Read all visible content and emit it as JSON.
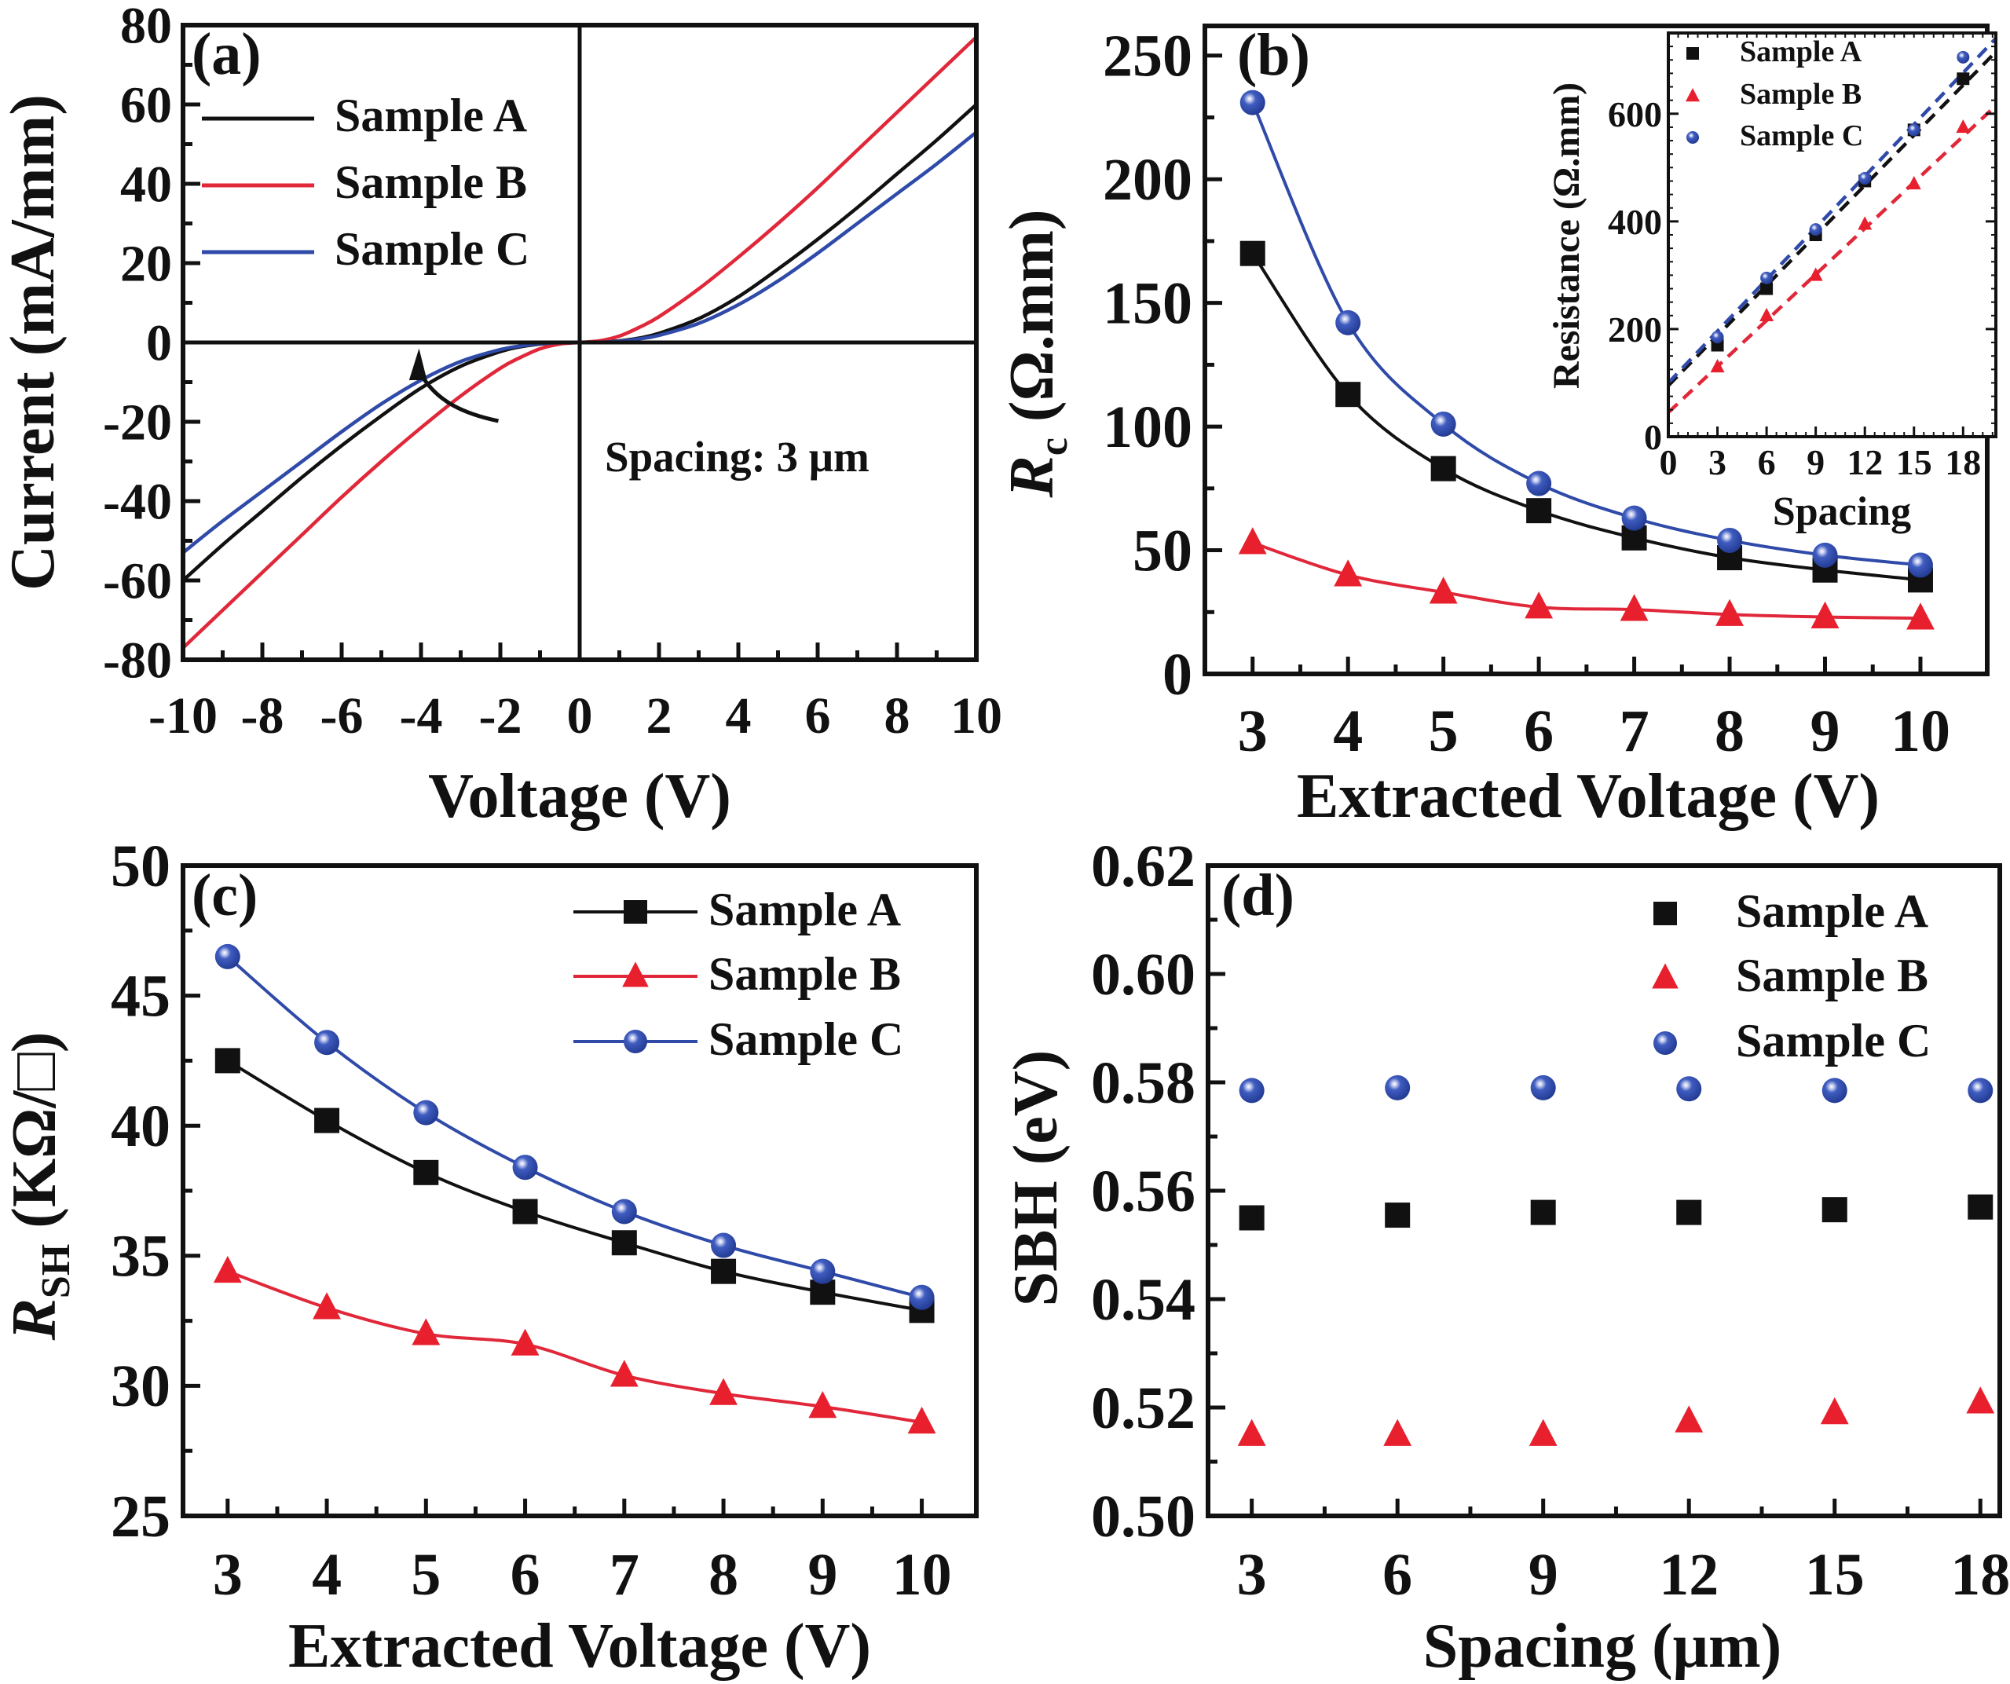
{
  "colors": {
    "sample_a": "#111111",
    "sample_b": "#e8202e",
    "sample_b_line": "#e0283a",
    "sample_c": "#2f4aa8",
    "axis": "#111111"
  },
  "chart_data": [
    {
      "id": "a",
      "panel_label": "(a)",
      "type": "line",
      "title": "",
      "xlabel": "Voltage (V)",
      "ylabel": "Current (mA/mm)",
      "xlim": [
        -10,
        10
      ],
      "ylim": [
        -80,
        80
      ],
      "xticks": [
        -10,
        -8,
        -6,
        -4,
        -2,
        0,
        2,
        4,
        6,
        8,
        10
      ],
      "xtick_labels": [
        "-10",
        "-8",
        "-6",
        "-4",
        "-2",
        "0",
        "2",
        "4",
        "6",
        "8",
        "10"
      ],
      "yticks": [
        -80,
        -60,
        -40,
        -20,
        0,
        20,
        40,
        60,
        80
      ],
      "ytick_labels": [
        "-80",
        "-60",
        "-40",
        "-20",
        "0",
        "20",
        "40",
        "60",
        "80"
      ],
      "annotation": "Spacing: 3 μm",
      "legend_position": "top-left",
      "x": [
        -10,
        -9,
        -8,
        -7,
        -6,
        -5,
        -4,
        -3,
        -2,
        -1.5,
        -1,
        -0.5,
        0,
        0.5,
        1,
        1.5,
        2,
        3,
        4,
        5,
        6,
        7,
        8,
        9,
        10
      ],
      "series": [
        {
          "name": "Sample A",
          "values": [
            -60,
            -51,
            -42.5,
            -34,
            -26,
            -18.5,
            -11.5,
            -6,
            -2.3,
            -1.1,
            -0.4,
            -0.1,
            0,
            0.1,
            0.4,
            1.1,
            2.3,
            6,
            11.5,
            18.5,
            26,
            34,
            42.5,
            51,
            60
          ]
        },
        {
          "name": "Sample B",
          "values": [
            -77,
            -67.5,
            -58,
            -48.5,
            -39,
            -30,
            -21.5,
            -13.5,
            -6.5,
            -3.8,
            -1.6,
            -0.4,
            0,
            0.4,
            1.6,
            3.8,
            6.5,
            13.5,
            21.5,
            30,
            39,
            48.5,
            58,
            67.5,
            77
          ]
        },
        {
          "name": "Sample C",
          "values": [
            -53,
            -45,
            -37.5,
            -30,
            -22.5,
            -15.5,
            -9.5,
            -4.8,
            -1.8,
            -0.9,
            -0.3,
            -0.05,
            0,
            0.05,
            0.3,
            0.9,
            1.8,
            4.8,
            9.5,
            15.5,
            22.5,
            30,
            37.5,
            45,
            53
          ]
        }
      ]
    },
    {
      "id": "b",
      "panel_label": "(b)",
      "type": "line",
      "title": "",
      "xlabel": "Extracted Voltage (V)",
      "ylabel_main": "R",
      "ylabel_sub": "c",
      "ylabel_unit": " (Ω.mm)",
      "xlim": [
        2.5,
        10.7
      ],
      "ylim": [
        0,
        262
      ],
      "xticks": [
        3,
        4,
        5,
        6,
        7,
        8,
        9,
        10
      ],
      "xtick_labels": [
        "3",
        "4",
        "5",
        "6",
        "7",
        "8",
        "9",
        "10"
      ],
      "yticks": [
        0,
        50,
        100,
        150,
        200,
        250
      ],
      "ytick_labels": [
        "0",
        "50",
        "100",
        "150",
        "200",
        "250"
      ],
      "x": [
        3,
        4,
        5,
        6,
        7,
        8,
        9,
        10
      ],
      "series": [
        {
          "name": "Sample A",
          "marker": "square",
          "values": [
            170,
            113,
            83,
            66,
            55,
            47,
            42,
            38
          ]
        },
        {
          "name": "Sample B",
          "marker": "triangle",
          "values": [
            53,
            40,
            33,
            27,
            26,
            24,
            23,
            22.5
          ]
        },
        {
          "name": "Sample C",
          "marker": "sphere",
          "values": [
            231,
            142,
            101,
            77,
            63,
            54,
            48,
            44
          ]
        }
      ],
      "inset": {
        "type": "scatter",
        "xlabel": "Spacing",
        "ylabel": "Resistance (Ω.mm)",
        "xlim": [
          0,
          20
        ],
        "ylim": [
          0,
          750
        ],
        "xticks": [
          0,
          3,
          6,
          9,
          12,
          15,
          18
        ],
        "xtick_labels": [
          "0",
          "3",
          "6",
          "9",
          "12",
          "15",
          "18"
        ],
        "yticks": [
          0,
          200,
          400,
          600
        ],
        "ytick_labels": [
          "0",
          "200",
          "400",
          "600"
        ],
        "legend_position": "top-left",
        "x": [
          3,
          6,
          9,
          12,
          15,
          18
        ],
        "series": [
          {
            "name": "Sample A",
            "marker": "square",
            "values": [
              170,
              275,
              375,
              475,
              570,
              665
            ],
            "fit": [
              95,
              31
            ]
          },
          {
            "name": "Sample B",
            "marker": "triangle",
            "values": [
              130,
              225,
              300,
              395,
              470,
              575
            ],
            "fit": [
              45,
              28.5
            ]
          },
          {
            "name": "Sample C",
            "marker": "sphere",
            "values": [
              185,
              295,
              385,
              480,
              570,
              705
            ],
            "fit": [
              100,
              32
            ]
          }
        ]
      }
    },
    {
      "id": "c",
      "panel_label": "(c)",
      "type": "line",
      "title": "",
      "xlabel": "Extracted Voltage (V)",
      "ylabel_main": "R",
      "ylabel_sub": "SH",
      "ylabel_unit": " (KΩ/□)",
      "xlim": [
        2.55,
        10.55
      ],
      "ylim": [
        25,
        50
      ],
      "xticks": [
        3,
        4,
        5,
        6,
        7,
        8,
        9,
        10
      ],
      "xtick_labels": [
        "3",
        "4",
        "5",
        "6",
        "7",
        "8",
        "9",
        "10"
      ],
      "yticks": [
        25,
        30,
        35,
        40,
        45,
        50
      ],
      "ytick_labels": [
        "25",
        "30",
        "35",
        "40",
        "45",
        "50"
      ],
      "legend_position": "top-right",
      "x": [
        3,
        4,
        5,
        6,
        7,
        8,
        9,
        10
      ],
      "series": [
        {
          "name": "Sample A",
          "marker": "square",
          "values": [
            42.5,
            40.2,
            38.2,
            36.7,
            35.5,
            34.4,
            33.6,
            32.9
          ]
        },
        {
          "name": "Sample B",
          "marker": "triangle",
          "values": [
            34.4,
            33.0,
            32.0,
            31.6,
            30.4,
            29.7,
            29.2,
            28.6
          ]
        },
        {
          "name": "Sample C",
          "marker": "sphere",
          "values": [
            46.5,
            43.2,
            40.5,
            38.4,
            36.7,
            35.4,
            34.4,
            33.4
          ]
        }
      ]
    },
    {
      "id": "d",
      "panel_label": "(d)",
      "type": "scatter",
      "title": "",
      "xlabel": "Spacing (μm)",
      "ylabel": "SBH (eV)",
      "xlim": [
        2.1,
        18.4
      ],
      "ylim": [
        0.5,
        0.62
      ],
      "xticks": [
        3,
        6,
        9,
        12,
        15,
        18
      ],
      "xtick_labels": [
        "3",
        "6",
        "9",
        "12",
        "15",
        "18"
      ],
      "yticks": [
        0.5,
        0.52,
        0.54,
        0.56,
        0.58,
        0.6,
        0.62
      ],
      "ytick_labels": [
        "0.50",
        "0.52",
        "0.54",
        "0.56",
        "0.58",
        "0.60",
        "0.62"
      ],
      "legend_position": "top-right",
      "x": [
        3,
        6,
        9,
        12,
        15,
        18
      ],
      "series": [
        {
          "name": "Sample A",
          "marker": "square",
          "values": [
            0.555,
            0.5555,
            0.556,
            0.556,
            0.5565,
            0.557
          ]
        },
        {
          "name": "Sample B",
          "marker": "triangle",
          "values": [
            0.515,
            0.515,
            0.515,
            0.5175,
            0.519,
            0.521
          ]
        },
        {
          "name": "Sample C",
          "marker": "sphere",
          "values": [
            0.5785,
            0.579,
            0.579,
            0.5788,
            0.5785,
            0.5785
          ]
        }
      ]
    }
  ]
}
